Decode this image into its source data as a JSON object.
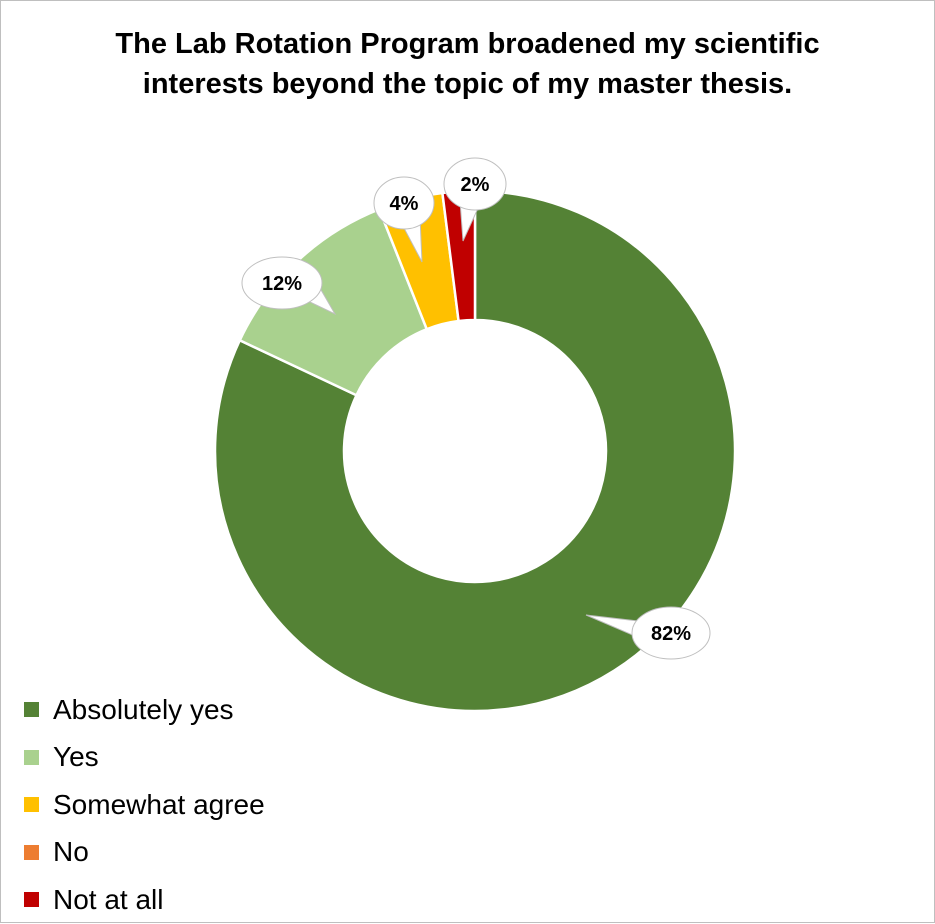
{
  "chart_data": {
    "type": "pie",
    "variant": "donut",
    "title": "The Lab Rotation Program broadened my scientific interests beyond the topic of my master thesis.",
    "categories": [
      "Absolutely yes",
      "Yes",
      "Somewhat agree",
      "No",
      "Not at all"
    ],
    "values": [
      82,
      12,
      4,
      0,
      2
    ],
    "value_labels": [
      "82%",
      "12%",
      "4%",
      null,
      "2%"
    ],
    "colors": [
      "#548235",
      "#a9d18e",
      "#ffc000",
      "#ed7d31",
      "#c00000"
    ],
    "legend_position": "bottom-left",
    "start_angle_deg": 0,
    "direction": "clockwise"
  }
}
